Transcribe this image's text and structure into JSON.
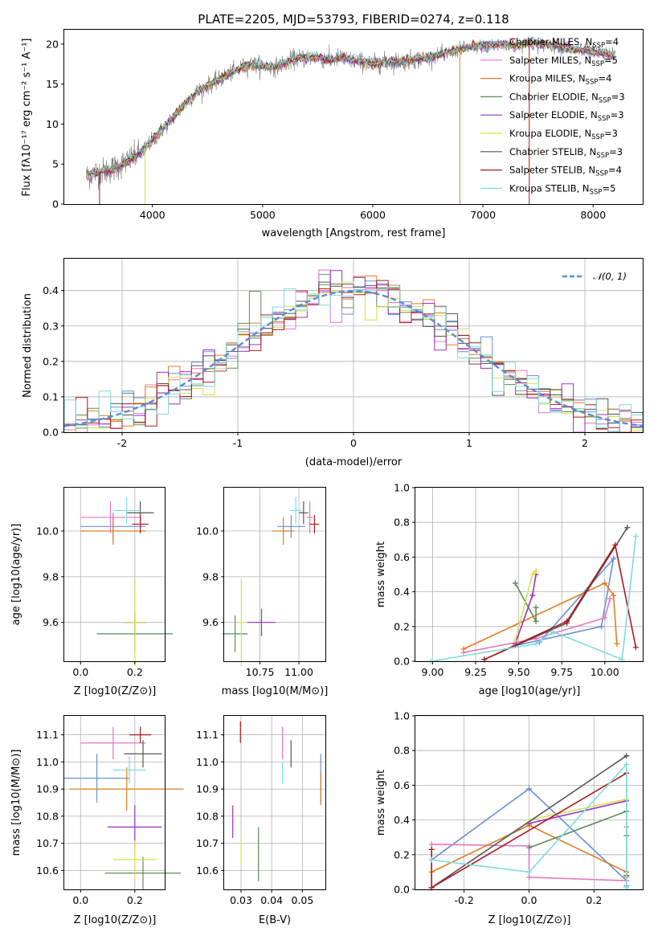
{
  "chart_data": [
    {
      "id": "spectrum",
      "type": "line",
      "title": "PLATE=2205, MJD=53793, FIBERID=0274, z=0.118",
      "xlabel": "wavelength [Angstrom, rest frame]",
      "ylabel": "Flux [fλ10⁻¹⁷ erg cm⁻² s⁻¹ A⁻¹]",
      "xlim": [
        3200,
        8450
      ],
      "ylim": [
        0,
        21.8
      ],
      "xticks": [
        4000,
        5000,
        6000,
        7000,
        8000
      ],
      "yticks": [
        0,
        5,
        10,
        15,
        20
      ],
      "grid": false,
      "legend_position": "right",
      "continuum": {
        "x": [
          3400,
          3500,
          3600,
          3700,
          3800,
          3900,
          4000,
          4100,
          4200,
          4300,
          4400,
          4500,
          4600,
          4700,
          4800,
          4900,
          5000,
          5100,
          5200,
          5300,
          5400,
          5500,
          5600,
          5700,
          5800,
          5900,
          6000,
          6100,
          6200,
          6300,
          6400,
          6500,
          6600,
          6700,
          6800,
          6900,
          7000,
          7100,
          7200,
          7300,
          7400,
          7500,
          7600,
          7700,
          7800,
          7900,
          8000,
          8100,
          8200
        ],
        "y": [
          3.5,
          4.0,
          4.2,
          4.8,
          5.6,
          6.5,
          8.0,
          9.5,
          11.0,
          12.6,
          14.0,
          14.8,
          15.5,
          16.3,
          17.0,
          17.5,
          17.3,
          17.1,
          17.6,
          18.2,
          18.3,
          18.4,
          18.0,
          18.3,
          18.0,
          17.8,
          17.5,
          17.7,
          17.8,
          17.9,
          18.1,
          18.3,
          18.6,
          19.0,
          19.4,
          19.6,
          19.8,
          19.9,
          20.0,
          19.7,
          20.2,
          20.0,
          19.9,
          19.7,
          19.4,
          19.2,
          19.0,
          18.8,
          18.6
        ]
      },
      "series": [
        {
          "name": "Chabrier MILES, N_SSP=4",
          "color": "#6a8fd6"
        },
        {
          "name": "Salpeter MILES, N_SSP=5",
          "color": "#e377c2"
        },
        {
          "name": "Kroupa MILES, N_SSP=4",
          "color": "#e07d22"
        },
        {
          "name": "Chabrier ELODIE, N_SSP=3",
          "color": "#5b8c5a"
        },
        {
          "name": "Salpeter ELODIE, N_SSP=3",
          "color": "#9b30c0"
        },
        {
          "name": "Kroupa ELODIE, N_SSP=3",
          "color": "#d4e34a"
        },
        {
          "name": "Chabrier STELIB, N_SSP=3",
          "color": "#555555"
        },
        {
          "name": "Salpeter STELIB, N_SSP=4",
          "color": "#b0181e"
        },
        {
          "name": "Kroupa STELIB, N_SSP=5",
          "color": "#7fdcdc"
        }
      ],
      "legend": [
        {
          "label": "Chabrier MILES, N",
          "sub": "SSP",
          "suffix": "=4"
        },
        {
          "label": "Salpeter MILES, N",
          "sub": "SSP",
          "suffix": "=5"
        },
        {
          "label": "Kroupa MILES, N",
          "sub": "SSP",
          "suffix": "=4"
        },
        {
          "label": "Chabrier ELODIE, N",
          "sub": "SSP",
          "suffix": "=3"
        },
        {
          "label": "Salpeter ELODIE, N",
          "sub": "SSP",
          "suffix": "=3"
        },
        {
          "label": "Kroupa ELODIE, N",
          "sub": "SSP",
          "suffix": "=3"
        },
        {
          "label": "Chabrier STELIB, N",
          "sub": "SSP",
          "suffix": "=3"
        },
        {
          "label": "Salpeter STELIB, N",
          "sub": "SSP",
          "suffix": "=4"
        },
        {
          "label": "Kroupa STELIB, N",
          "sub": "SSP",
          "suffix": "=5"
        }
      ]
    },
    {
      "id": "residuals",
      "type": "line",
      "xlabel": "(data-model)/error",
      "ylabel": "Normed distribution",
      "xlim": [
        -2.5,
        2.5
      ],
      "ylim": [
        0,
        0.49
      ],
      "xticks": [
        -2,
        -1,
        0,
        1,
        2
      ],
      "yticks": [
        0.0,
        0.1,
        0.2,
        0.3,
        0.4
      ],
      "grid": true,
      "legend_position": "top-right",
      "legend": "𝒩(0, 1)",
      "reference_curve": {
        "name": "N(0,1)",
        "mean": 0,
        "sigma": 1,
        "color": "#5b8bd6"
      }
    },
    {
      "id": "z-vs-age",
      "type": "scatter",
      "xlabel": "Z [log10(Z/Z⊙)]",
      "ylabel": "age  [log10(age/yr)]",
      "xlim": [
        -0.06,
        0.31
      ],
      "ylim": [
        9.43,
        10.19
      ],
      "xticks": [
        0.0,
        0.2
      ],
      "yticks": [
        9.6,
        9.8,
        10.0
      ],
      "grid": true,
      "points": [
        {
          "x": 0.12,
          "y": 10.02,
          "xerr": 0.12,
          "yerr": 0.06,
          "color": "#6a8fd6"
        },
        {
          "x": 0.11,
          "y": 10.06,
          "xerr": 0.11,
          "yerr": 0.07,
          "color": "#e377c2"
        },
        {
          "x": 0.12,
          "y": 10.0,
          "xerr": 0.12,
          "yerr": 0.06,
          "color": "#e07d22"
        },
        {
          "x": 0.2,
          "y": 9.55,
          "xerr": 0.14,
          "yerr": 0.08,
          "color": "#5b8c5a"
        },
        {
          "x": 0.2,
          "y": 9.6,
          "xerr": 0.04,
          "yerr": 0.05,
          "color": "#9b30c0"
        },
        {
          "x": 0.2,
          "y": 9.6,
          "xerr": 0.04,
          "yerr": 0.19,
          "color": "#d4e34a"
        },
        {
          "x": 0.22,
          "y": 10.08,
          "xerr": 0.05,
          "yerr": 0.05,
          "color": "#555555"
        },
        {
          "x": 0.22,
          "y": 10.03,
          "xerr": 0.03,
          "yerr": 0.04,
          "color": "#b0181e"
        },
        {
          "x": 0.17,
          "y": 10.09,
          "xerr": 0.05,
          "yerr": 0.06,
          "color": "#7fdcdc"
        }
      ]
    },
    {
      "id": "mass-vs-age",
      "type": "scatter",
      "xlabel": "mass [log10(M/M⊙)]",
      "ylabel": "",
      "xlim": [
        10.52,
        11.17
      ],
      "ylim": [
        9.43,
        10.19
      ],
      "xticks": [
        10.75,
        11.0
      ],
      "yticks": [
        9.6,
        9.8,
        10.0
      ],
      "grid": true,
      "points": [
        {
          "x": 10.95,
          "y": 10.02,
          "xerr": 0.09,
          "yerr": 0.05,
          "color": "#6a8fd6"
        },
        {
          "x": 11.07,
          "y": 10.06,
          "xerr": 0.02,
          "yerr": 0.07,
          "color": "#e377c2"
        },
        {
          "x": 10.9,
          "y": 10.0,
          "xerr": 0.07,
          "yerr": 0.06,
          "color": "#e07d22"
        },
        {
          "x": 10.59,
          "y": 9.55,
          "xerr": 0.08,
          "yerr": 0.08,
          "color": "#5b8c5a"
        },
        {
          "x": 10.76,
          "y": 9.6,
          "xerr": 0.09,
          "yerr": 0.06,
          "color": "#9b30c0"
        },
        {
          "x": 10.63,
          "y": 9.6,
          "xerr": 0.03,
          "yerr": 0.19,
          "color": "#d4e34a"
        },
        {
          "x": 11.03,
          "y": 10.08,
          "xerr": 0.03,
          "yerr": 0.05,
          "color": "#555555"
        },
        {
          "x": 11.1,
          "y": 10.03,
          "xerr": 0.03,
          "yerr": 0.04,
          "color": "#b0181e"
        },
        {
          "x": 10.98,
          "y": 10.09,
          "xerr": 0.04,
          "yerr": 0.06,
          "color": "#7fdcdc"
        }
      ]
    },
    {
      "id": "age-vs-massweight",
      "type": "line",
      "xlabel": "age  [log10(age/yr)]",
      "ylabel": "mass weight",
      "xlim": [
        8.9,
        10.22
      ],
      "ylim": [
        0,
        1
      ],
      "xticks": [
        9.0,
        9.25,
        9.5,
        9.75,
        10.0
      ],
      "yticks": [
        0.0,
        0.2,
        0.4,
        0.6,
        0.8,
        1.0
      ],
      "grid": true,
      "series": [
        {
          "name": "Chabrier MILES",
          "color": "#6a8fd6",
          "x": [
            9.48,
            9.98,
            10.05,
            9.62
          ],
          "y": [
            0.09,
            0.2,
            0.59,
            0.11
          ]
        },
        {
          "name": "Salpeter MILES",
          "color": "#e377c2",
          "x": [
            9.18,
            9.6,
            10.0,
            10.03
          ],
          "y": [
            0.05,
            0.13,
            0.25,
            0.36
          ]
        },
        {
          "name": "Kroupa MILES",
          "color": "#e07d22",
          "x": [
            9.18,
            10.0,
            10.05,
            10.07
          ],
          "y": [
            0.07,
            0.45,
            0.38,
            0.1
          ]
        },
        {
          "name": "Chabrier ELODIE",
          "color": "#5b8c5a",
          "x": [
            9.48,
            9.6,
            9.6
          ],
          "y": [
            0.45,
            0.23,
            0.31
          ]
        },
        {
          "name": "Salpeter ELODIE",
          "color": "#9b30c0",
          "x": [
            9.48,
            9.58,
            9.6
          ],
          "y": [
            0.1,
            0.38,
            0.5
          ]
        },
        {
          "name": "Kroupa ELODIE",
          "color": "#d4e34a",
          "x": [
            9.48,
            9.58,
            9.6
          ],
          "y": [
            0.12,
            0.5,
            0.52
          ]
        },
        {
          "name": "Chabrier STELIB",
          "color": "#555555",
          "x": [
            9.3,
            9.78,
            10.13
          ],
          "y": [
            0.01,
            0.22,
            0.77
          ]
        },
        {
          "name": "Salpeter STELIB",
          "color": "#b0181e",
          "x": [
            9.3,
            9.78,
            10.06,
            10.18
          ],
          "y": [
            0.01,
            0.23,
            0.67,
            0.08
          ]
        },
        {
          "name": "Kroupa STELIB",
          "color": "#7fdcdc",
          "x": [
            8.99,
            9.6,
            9.7,
            10.1,
            10.18
          ],
          "y": [
            0.0,
            0.1,
            0.17,
            0.01,
            0.72
          ]
        }
      ]
    },
    {
      "id": "z-vs-mass",
      "type": "scatter",
      "xlabel": "Z [log10(Z/Z⊙)]",
      "ylabel": "mass [log10(M/M⊙)]",
      "xlim": [
        -0.06,
        0.31
      ],
      "ylim": [
        10.53,
        11.17
      ],
      "xticks": [
        0.0,
        0.2
      ],
      "yticks": [
        10.6,
        10.7,
        10.8,
        10.9,
        11.0,
        11.1
      ],
      "grid": true,
      "points": [
        {
          "x": 0.06,
          "y": 10.94,
          "xerr": 0.12,
          "yerr": 0.09,
          "color": "#6a8fd6"
        },
        {
          "x": 0.12,
          "y": 11.07,
          "xerr": 0.12,
          "yerr": 0.06,
          "color": "#e377c2"
        },
        {
          "x": 0.17,
          "y": 10.9,
          "xerr": 0.21,
          "yerr": 0.08,
          "color": "#e07d22"
        },
        {
          "x": 0.23,
          "y": 10.59,
          "xerr": 0.14,
          "yerr": 0.06,
          "color": "#5b8c5a"
        },
        {
          "x": 0.2,
          "y": 10.76,
          "xerr": 0.1,
          "yerr": 0.08,
          "color": "#9b30c0"
        },
        {
          "x": 0.2,
          "y": 10.64,
          "xerr": 0.08,
          "yerr": 0.07,
          "color": "#d4e34a"
        },
        {
          "x": 0.23,
          "y": 11.03,
          "xerr": 0.07,
          "yerr": 0.05,
          "color": "#555555"
        },
        {
          "x": 0.22,
          "y": 11.1,
          "xerr": 0.04,
          "yerr": 0.03,
          "color": "#b0181e"
        },
        {
          "x": 0.18,
          "y": 10.97,
          "xerr": 0.06,
          "yerr": 0.05,
          "color": "#7fdcdc"
        }
      ]
    },
    {
      "id": "ebv-vs-mass",
      "type": "scatter",
      "xlabel": "E(B-V)",
      "ylabel": "",
      "xlim": [
        0.0245,
        0.0575
      ],
      "ylim": [
        10.53,
        11.17
      ],
      "xticks": [
        0.03,
        0.04,
        0.05
      ],
      "yticks": [
        10.6,
        10.7,
        10.8,
        10.9,
        11.0,
        11.1
      ],
      "grid": true,
      "points": [
        {
          "x": 0.056,
          "y": 10.94,
          "xerr": 0.0,
          "yerr": 0.09,
          "color": "#6a8fd6"
        },
        {
          "x": 0.0435,
          "y": 11.07,
          "xerr": 0.0,
          "yerr": 0.06,
          "color": "#e377c2"
        },
        {
          "x": 0.056,
          "y": 10.9,
          "xerr": 0.0,
          "yerr": 0.06,
          "color": "#e07d22"
        },
        {
          "x": 0.0357,
          "y": 10.66,
          "xerr": 0.0,
          "yerr": 0.1,
          "color": "#5b8c5a"
        },
        {
          "x": 0.0273,
          "y": 10.78,
          "xerr": 0.0,
          "yerr": 0.06,
          "color": "#9b30c0"
        },
        {
          "x": 0.03,
          "y": 10.67,
          "xerr": 0.0,
          "yerr": 0.05,
          "color": "#d4e34a"
        },
        {
          "x": 0.0463,
          "y": 11.03,
          "xerr": 0.0,
          "yerr": 0.05,
          "color": "#555555"
        },
        {
          "x": 0.0298,
          "y": 11.11,
          "xerr": 0.0,
          "yerr": 0.04,
          "color": "#b0181e"
        },
        {
          "x": 0.0435,
          "y": 10.96,
          "xerr": 0.0,
          "yerr": 0.04,
          "color": "#7fdcdc"
        }
      ]
    },
    {
      "id": "z-vs-massweight",
      "type": "line",
      "xlabel": "Z [log10(Z/Z⊙)]",
      "ylabel": "mass weight",
      "xlim": [
        -0.35,
        0.35
      ],
      "ylim": [
        0,
        1
      ],
      "xticks": [
        -0.2,
        0.0,
        0.2
      ],
      "yticks": [
        0.0,
        0.2,
        0.4,
        0.6,
        0.8,
        1.0
      ],
      "grid": true,
      "series": [
        {
          "name": "Chabrier MILES",
          "color": "#6a8fd6",
          "x": [
            -0.3,
            0.0,
            0.3,
            0.3
          ],
          "y": [
            0.17,
            0.58,
            0.05,
            0.02
          ]
        },
        {
          "name": "Salpeter MILES",
          "color": "#e377c2",
          "x": [
            -0.3,
            0.0,
            0.0,
            0.3,
            0.3
          ],
          "y": [
            0.26,
            0.25,
            0.07,
            0.05,
            0.36
          ]
        },
        {
          "name": "Kroupa MILES",
          "color": "#e07d22",
          "x": [
            -0.3,
            0.0,
            0.3,
            0.3
          ],
          "y": [
            0.1,
            0.37,
            0.1,
            0.07
          ]
        },
        {
          "name": "Chabrier ELODIE",
          "color": "#5b8c5a",
          "x": [
            0.0,
            0.3,
            0.3
          ],
          "y": [
            0.24,
            0.45,
            0.31
          ]
        },
        {
          "name": "Salpeter ELODIE",
          "color": "#9b30c0",
          "x": [
            0.0,
            0.3
          ],
          "y": [
            0.38,
            0.51
          ]
        },
        {
          "name": "Kroupa ELODIE",
          "color": "#d4e34a",
          "x": [
            0.0,
            0.3
          ],
          "y": [
            0.4,
            0.52
          ]
        },
        {
          "name": "Chabrier STELIB",
          "color": "#555555",
          "x": [
            -0.3,
            0.3
          ],
          "y": [
            0.01,
            0.77
          ]
        },
        {
          "name": "Salpeter STELIB",
          "color": "#b0181e",
          "x": [
            -0.3,
            -0.3,
            0.3,
            0.3
          ],
          "y": [
            0.23,
            0.01,
            0.67,
            0.08
          ]
        },
        {
          "name": "Kroupa STELIB",
          "color": "#7fdcdc",
          "x": [
            -0.3,
            0.0,
            0.3,
            0.3
          ],
          "y": [
            0.17,
            0.1,
            0.72,
            0.01
          ]
        }
      ]
    }
  ]
}
